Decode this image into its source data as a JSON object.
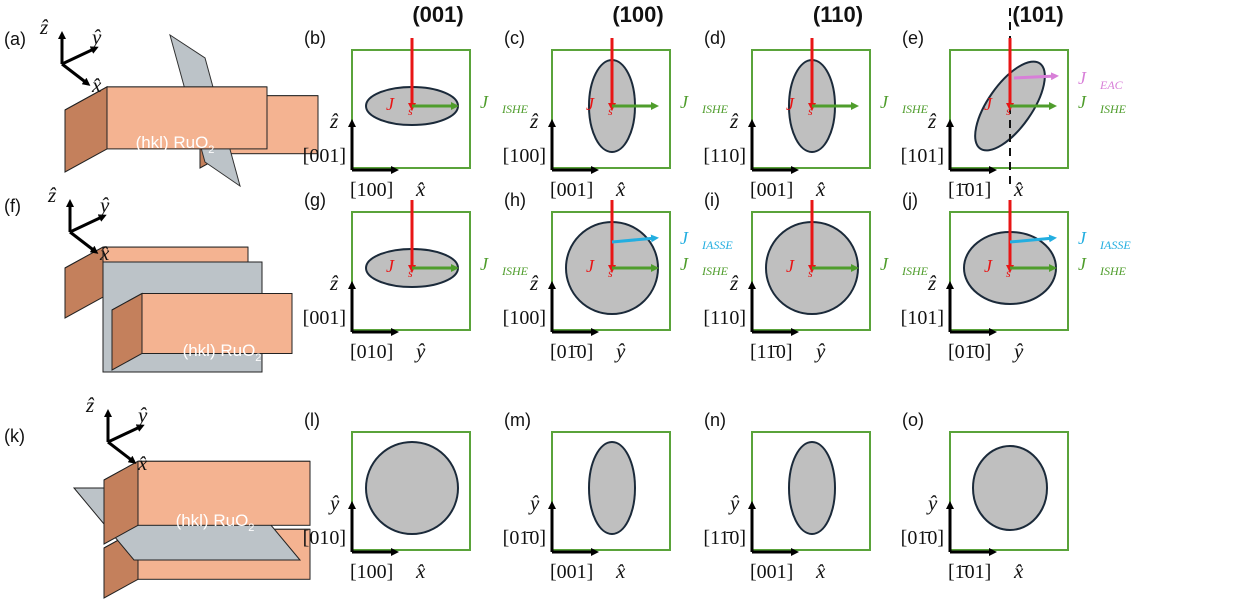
{
  "colors": {
    "panel_border": "#5aa33a",
    "ellipse_fill": "#bfbfbf",
    "ellipse_stroke": "#1b2a3a",
    "spin_current": "#e81515",
    "ishe": "#4f9d2c",
    "iasse": "#23aee0",
    "eac": "#d87fd8",
    "block_front": "#f4b391",
    "block_top": "#f8c6a8",
    "block_side": "#c4805c",
    "plane": "#bcc3c8"
  },
  "column_headers": [
    "(001)",
    "(100)",
    "(110)",
    "(101)"
  ],
  "block_label": {
    "main": "(hkl) RuO",
    "sub": "2"
  },
  "schematics": [
    {
      "letter": "(a)",
      "axes": [
        "ẑ",
        "ŷ",
        "x̂"
      ]
    },
    {
      "letter": "(f)",
      "axes": [
        "ẑ",
        "ŷ",
        "x̂"
      ]
    },
    {
      "letter": "(k)",
      "axes": [
        "ẑ",
        "ŷ",
        "x̂"
      ]
    }
  ],
  "vectors": {
    "spin": {
      "main": "J⃗",
      "sub": "s"
    },
    "ishe": {
      "main": "J⃗",
      "sub": "ISHE"
    },
    "iasse": {
      "main": "J⃗",
      "sub": "IASSE"
    },
    "eac": {
      "main": "J⃗",
      "sub": "EAC"
    }
  },
  "rows": [
    {
      "vertical_axis": "ẑ",
      "horizontal_axis": "x̂",
      "panels": [
        {
          "letter": "(b)",
          "v_dir": "[001]",
          "h_dir": "[100]",
          "shape": "wide",
          "spin": true,
          "ishe": true,
          "iasse": false,
          "eac": false,
          "dashed": false
        },
        {
          "letter": "(c)",
          "v_dir": "[100]",
          "h_dir": "[001]",
          "shape": "tall",
          "spin": true,
          "ishe": true,
          "iasse": false,
          "eac": false,
          "dashed": false
        },
        {
          "letter": "(d)",
          "v_dir": "[110]",
          "h_dir": "[001]",
          "shape": "tall",
          "spin": true,
          "ishe": true,
          "iasse": false,
          "eac": false,
          "dashed": false
        },
        {
          "letter": "(e)",
          "v_dir": "[101]",
          "h_dir": "[1̄01]",
          "shape": "tilted",
          "spin": true,
          "ishe": true,
          "iasse": false,
          "eac": true,
          "dashed": true
        }
      ]
    },
    {
      "vertical_axis": "ẑ",
      "horizontal_axis": "ŷ",
      "panels": [
        {
          "letter": "(g)",
          "v_dir": "[001]",
          "h_dir": "[010]",
          "shape": "wide",
          "spin": true,
          "ishe": true,
          "iasse": false,
          "eac": false,
          "dashed": false
        },
        {
          "letter": "(h)",
          "v_dir": "[100]",
          "h_dir": "[01̄0]",
          "shape": "round",
          "spin": true,
          "ishe": true,
          "iasse": true,
          "eac": false,
          "dashed": false
        },
        {
          "letter": "(i)",
          "v_dir": "[110]",
          "h_dir": "[11̄0]",
          "shape": "round",
          "spin": true,
          "ishe": true,
          "iasse": false,
          "eac": false,
          "dashed": false
        },
        {
          "letter": "(j)",
          "v_dir": "[101]",
          "h_dir": "[01̄0]",
          "shape": "wideround",
          "spin": true,
          "ishe": true,
          "iasse": true,
          "eac": false,
          "dashed": false
        }
      ]
    },
    {
      "vertical_axis": "ŷ",
      "horizontal_axis": "x̂",
      "panels": [
        {
          "letter": "(l)",
          "v_dir": "[010]",
          "h_dir": "[100]",
          "shape": "round",
          "spin": false,
          "ishe": false,
          "iasse": false,
          "eac": false,
          "dashed": false
        },
        {
          "letter": "(m)",
          "v_dir": "[01̄0]",
          "h_dir": "[001]",
          "shape": "tall",
          "spin": false,
          "ishe": false,
          "iasse": false,
          "eac": false,
          "dashed": false
        },
        {
          "letter": "(n)",
          "v_dir": "[11̄0]",
          "h_dir": "[001]",
          "shape": "tall",
          "spin": false,
          "ishe": false,
          "iasse": false,
          "eac": false,
          "dashed": false
        },
        {
          "letter": "(o)",
          "v_dir": "[01̄0]",
          "h_dir": "[1̄01]",
          "shape": "oval",
          "spin": false,
          "ishe": false,
          "iasse": false,
          "eac": false,
          "dashed": false
        }
      ]
    }
  ]
}
